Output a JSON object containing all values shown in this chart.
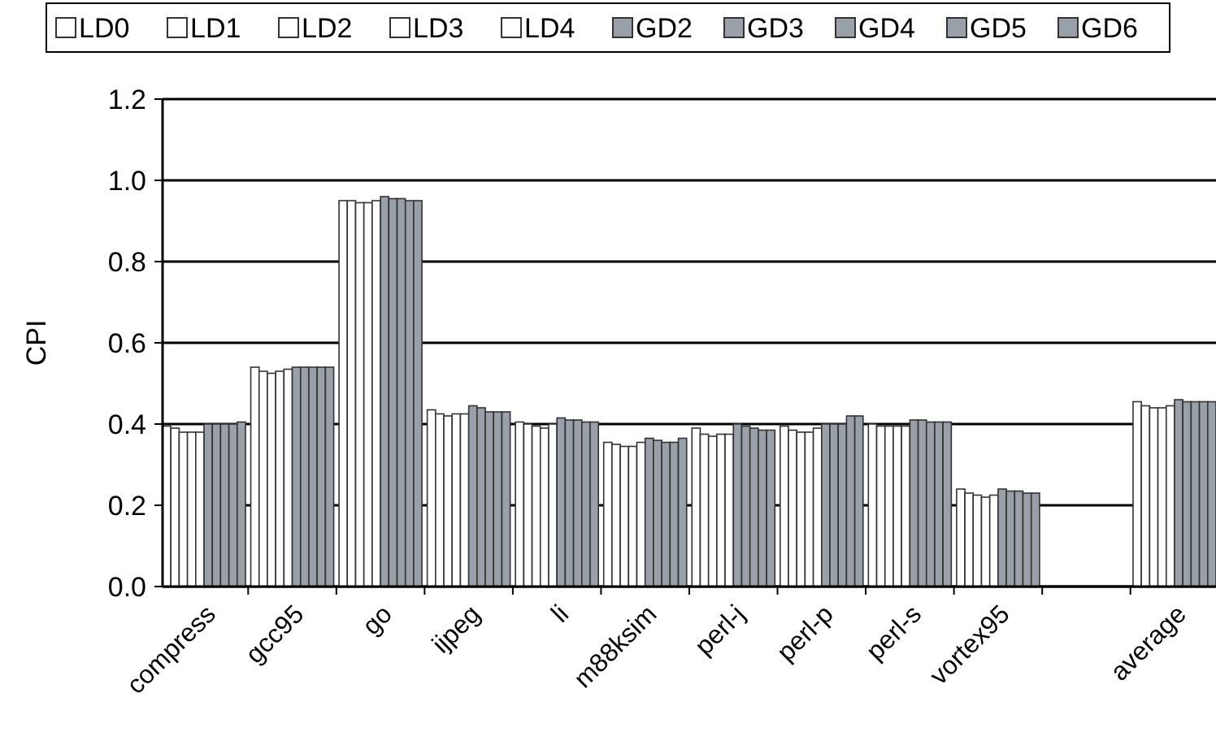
{
  "chart_data": {
    "type": "bar",
    "ylabel": "CPI",
    "categories": [
      "compress",
      "gcc95",
      "go",
      "ijpeg",
      "li",
      "m88ksim",
      "perl-j",
      "perl-p",
      "perl-s",
      "vortex95",
      null,
      "average"
    ],
    "ylim": [
      0,
      1.2
    ],
    "yticks": [
      {
        "value": 0,
        "label": "0.0"
      },
      0.2,
      0.4,
      0.6,
      0.8,
      {
        "value": 1,
        "label": "1.0"
      },
      1.2
    ],
    "grid": "y",
    "legend": "top",
    "series": [
      {
        "name": "LD0",
        "color": "#ffffff",
        "values": [
          0.395,
          0.54,
          0.95,
          0.435,
          0.405,
          0.355,
          0.39,
          0.395,
          0.4,
          0.24,
          null,
          0.455
        ]
      },
      {
        "name": "LD1",
        "color": "#ffffff",
        "values": [
          0.39,
          0.53,
          0.95,
          0.425,
          0.4,
          0.35,
          0.375,
          0.385,
          0.395,
          0.23,
          null,
          0.445
        ]
      },
      {
        "name": "LD2",
        "color": "#ffffff",
        "values": [
          0.38,
          0.525,
          0.945,
          0.42,
          0.395,
          0.345,
          0.37,
          0.38,
          0.395,
          0.225,
          null,
          0.44
        ]
      },
      {
        "name": "LD3",
        "color": "#ffffff",
        "values": [
          0.38,
          0.53,
          0.945,
          0.425,
          0.39,
          0.345,
          0.375,
          0.38,
          0.395,
          0.22,
          null,
          0.44
        ]
      },
      {
        "name": "LD4",
        "color": "#ffffff",
        "values": [
          0.38,
          0.535,
          0.95,
          0.425,
          0.4,
          0.355,
          0.375,
          0.39,
          0.395,
          0.225,
          null,
          0.445
        ]
      },
      {
        "name": "GD2",
        "color": "#9aa0a8",
        "values": [
          0.4,
          0.54,
          0.96,
          0.445,
          0.415,
          0.365,
          0.4,
          0.4,
          0.41,
          0.24,
          null,
          0.46
        ]
      },
      {
        "name": "GD3",
        "color": "#9aa0a8",
        "values": [
          0.4,
          0.54,
          0.955,
          0.44,
          0.41,
          0.36,
          0.395,
          0.4,
          0.41,
          0.235,
          null,
          0.455
        ]
      },
      {
        "name": "GD4",
        "color": "#9aa0a8",
        "values": [
          0.4,
          0.54,
          0.955,
          0.43,
          0.41,
          0.355,
          0.39,
          0.4,
          0.405,
          0.235,
          null,
          0.455
        ]
      },
      {
        "name": "GD5",
        "color": "#9aa0a8",
        "values": [
          0.4,
          0.54,
          0.95,
          0.43,
          0.405,
          0.355,
          0.385,
          0.42,
          0.405,
          0.23,
          null,
          0.455
        ]
      },
      {
        "name": "GD6",
        "color": "#9aa0a8",
        "values": [
          0.405,
          0.54,
          0.95,
          0.43,
          0.405,
          0.365,
          0.385,
          0.42,
          0.405,
          0.23,
          null,
          0.455
        ]
      }
    ]
  }
}
